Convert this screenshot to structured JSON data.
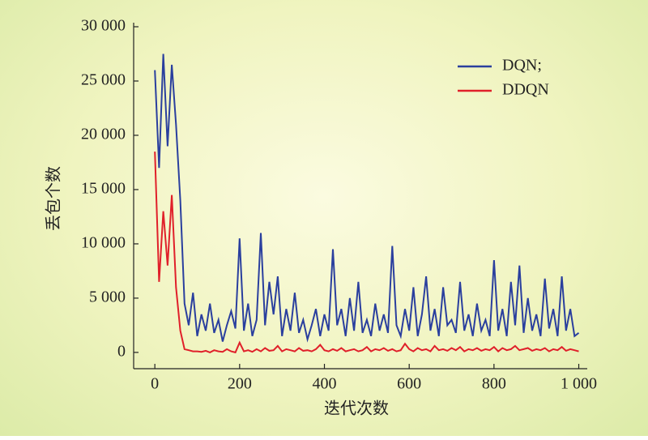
{
  "chart_data": {
    "type": "line",
    "x_label": "迭代次数",
    "y_label": "丢包个数",
    "x": [
      0,
      10,
      20,
      30,
      40,
      50,
      60,
      70,
      80,
      90,
      100,
      110,
      120,
      130,
      140,
      150,
      160,
      170,
      180,
      190,
      200,
      210,
      220,
      230,
      240,
      250,
      260,
      270,
      280,
      290,
      300,
      310,
      320,
      330,
      340,
      350,
      360,
      370,
      380,
      390,
      400,
      410,
      420,
      430,
      440,
      450,
      460,
      470,
      480,
      490,
      500,
      510,
      520,
      530,
      540,
      550,
      560,
      570,
      580,
      590,
      600,
      610,
      620,
      630,
      640,
      650,
      660,
      670,
      680,
      690,
      700,
      710,
      720,
      730,
      740,
      750,
      760,
      770,
      780,
      790,
      800,
      810,
      820,
      830,
      840,
      850,
      860,
      870,
      880,
      890,
      900,
      910,
      920,
      930,
      940,
      950,
      960,
      970,
      980,
      990,
      1000
    ],
    "series": [
      {
        "name": "DQN;",
        "color": "#2a3f9e",
        "values": [
          26000,
          17000,
          27500,
          19000,
          26500,
          21000,
          14000,
          4500,
          2500,
          5500,
          1500,
          3500,
          2000,
          4500,
          1800,
          3000,
          1000,
          2500,
          3800,
          2200,
          10500,
          2000,
          4500,
          1500,
          3000,
          11000,
          2500,
          6500,
          3500,
          7000,
          1500,
          4000,
          2000,
          5500,
          1800,
          3000,
          1200,
          2500,
          4000,
          1500,
          3500,
          2000,
          9500,
          2500,
          4000,
          1500,
          5000,
          2000,
          6500,
          1800,
          3000,
          1500,
          4500,
          2000,
          3500,
          1800,
          9800,
          2500,
          1500,
          4000,
          2000,
          6000,
          1500,
          3500,
          7000,
          2000,
          4000,
          1500,
          6000,
          2500,
          3000,
          1800,
          6500,
          2000,
          3500,
          1500,
          4500,
          2000,
          3000,
          1500,
          8500,
          2000,
          4000,
          1500,
          6500,
          2500,
          8000,
          1800,
          5000,
          2000,
          3500,
          1500,
          6800,
          2200,
          4000,
          1500,
          7000,
          2000,
          4000,
          1500,
          1800
        ]
      },
      {
        "name": "DDQN",
        "color": "#e0202a",
        "values": [
          18500,
          6500,
          13000,
          8000,
          14500,
          6000,
          2000,
          300,
          200,
          100,
          100,
          50,
          150,
          0,
          200,
          100,
          50,
          300,
          100,
          0,
          900,
          100,
          200,
          50,
          300,
          100,
          400,
          150,
          200,
          600,
          100,
          300,
          200,
          100,
          400,
          150,
          200,
          100,
          300,
          700,
          200,
          100,
          300,
          150,
          400,
          100,
          200,
          300,
          100,
          200,
          500,
          100,
          300,
          200,
          400,
          150,
          300,
          100,
          200,
          800,
          300,
          100,
          400,
          200,
          300,
          100,
          600,
          200,
          300,
          150,
          400,
          200,
          500,
          100,
          300,
          200,
          400,
          150,
          300,
          200,
          500,
          100,
          400,
          200,
          300,
          600,
          200,
          300,
          400,
          150,
          300,
          200,
          400,
          100,
          300,
          200,
          500,
          150,
          300,
          200,
          100
        ]
      }
    ],
    "xlim": [
      -50,
      1020
    ],
    "ylim": [
      -1500,
      30000
    ],
    "xticks": [
      0,
      200,
      400,
      600,
      800,
      {
        "value": 1000,
        "label": "1 000"
      }
    ],
    "yticks": [
      0,
      {
        "value": 5000,
        "label": "5 000"
      },
      {
        "value": 10000,
        "label": "10 000"
      },
      {
        "value": 15000,
        "label": "15 000"
      },
      {
        "value": 20000,
        "label": "20 000"
      },
      {
        "value": 25000,
        "label": "25 000"
      },
      {
        "value": 30000,
        "label": "30 000"
      }
    ],
    "legend": "upper right"
  }
}
